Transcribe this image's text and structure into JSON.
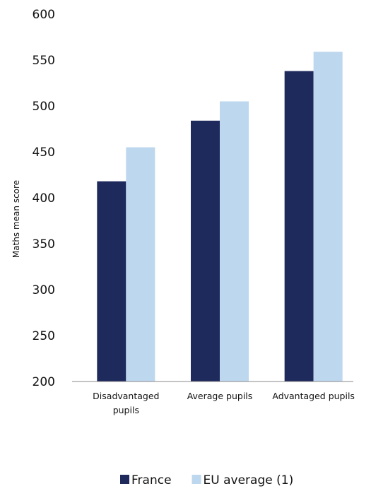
{
  "chart_data": {
    "type": "bar",
    "categories": [
      "Disadvantaged pupils",
      "Average pupils",
      "Advantaged pupils"
    ],
    "category_label_lines": [
      [
        "Disadvantaged",
        "pupils"
      ],
      [
        "Average pupils"
      ],
      [
        "Advantaged pupils"
      ]
    ],
    "series": [
      {
        "name": "France",
        "values": [
          418,
          484,
          538
        ],
        "color": "#1f2a5c"
      },
      {
        "name": "EU average (1)",
        "values": [
          455,
          505,
          559
        ],
        "color": "#bdd7ee"
      }
    ],
    "title": "",
    "xlabel": "",
    "ylabel": "Maths mean score",
    "ylim": [
      200,
      600
    ],
    "yticks": [
      200,
      250,
      300,
      350,
      400,
      450,
      500,
      550,
      600
    ],
    "grid": false,
    "legend_position": "bottom"
  }
}
